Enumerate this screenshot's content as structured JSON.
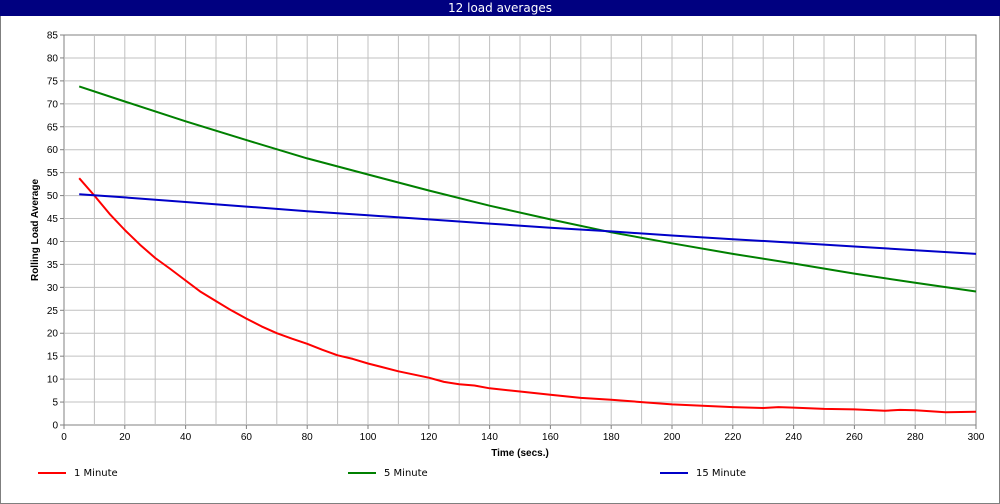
{
  "window": {
    "title": "12 load averages"
  },
  "chart_data": {
    "type": "line",
    "title": "12 load averages",
    "xlabel": "Time (secs.)",
    "ylabel": "Rolling Load Average",
    "xlim": [
      0,
      300
    ],
    "ylim": [
      0,
      85
    ],
    "xticks": [
      0,
      20,
      40,
      60,
      80,
      100,
      120,
      140,
      160,
      180,
      200,
      220,
      240,
      260,
      280,
      300
    ],
    "yticks": [
      0,
      5,
      10,
      15,
      20,
      25,
      30,
      35,
      40,
      45,
      50,
      55,
      60,
      65,
      70,
      75,
      80,
      85
    ],
    "x_minor_step": 10,
    "grid": true,
    "legend_position": "bottom",
    "series": [
      {
        "name": "1 Minute",
        "color": "#ff0000",
        "x": [
          5,
          10,
          15,
          20,
          25,
          30,
          35,
          40,
          45,
          50,
          55,
          60,
          65,
          70,
          75,
          80,
          85,
          90,
          95,
          100,
          110,
          120,
          125,
          130,
          135,
          140,
          150,
          160,
          170,
          180,
          190,
          200,
          210,
          220,
          230,
          235,
          240,
          250,
          260,
          270,
          275,
          280,
          290,
          300
        ],
        "y": [
          53.8,
          50.0,
          46.0,
          42.5,
          39.3,
          36.4,
          34.0,
          31.5,
          29.0,
          27.0,
          25.0,
          23.2,
          21.5,
          20.0,
          18.8,
          17.7,
          16.4,
          15.2,
          14.4,
          13.4,
          11.7,
          10.3,
          9.4,
          8.9,
          8.6,
          8.0,
          7.3,
          6.6,
          5.9,
          5.5,
          5.0,
          4.5,
          4.2,
          3.9,
          3.7,
          3.9,
          3.8,
          3.5,
          3.4,
          3.1,
          3.3,
          3.2,
          2.8,
          2.9
        ]
      },
      {
        "name": "5 Minute",
        "color": "#008000",
        "x": [
          5,
          20,
          40,
          60,
          80,
          100,
          120,
          140,
          160,
          180,
          200,
          220,
          240,
          260,
          280,
          300
        ],
        "y": [
          73.8,
          70.5,
          66.2,
          62.1,
          58.1,
          54.6,
          51.1,
          47.8,
          44.8,
          42.0,
          39.6,
          37.3,
          35.2,
          33.0,
          31.0,
          29.1
        ]
      },
      {
        "name": "15 Minute",
        "color": "#0000c8",
        "x": [
          5,
          20,
          40,
          60,
          80,
          100,
          120,
          140,
          160,
          180,
          200,
          220,
          240,
          260,
          280,
          300
        ],
        "y": [
          50.3,
          49.6,
          48.6,
          47.6,
          46.6,
          45.7,
          44.8,
          43.9,
          43.0,
          42.2,
          41.3,
          40.5,
          39.7,
          38.9,
          38.1,
          37.3
        ]
      }
    ]
  }
}
